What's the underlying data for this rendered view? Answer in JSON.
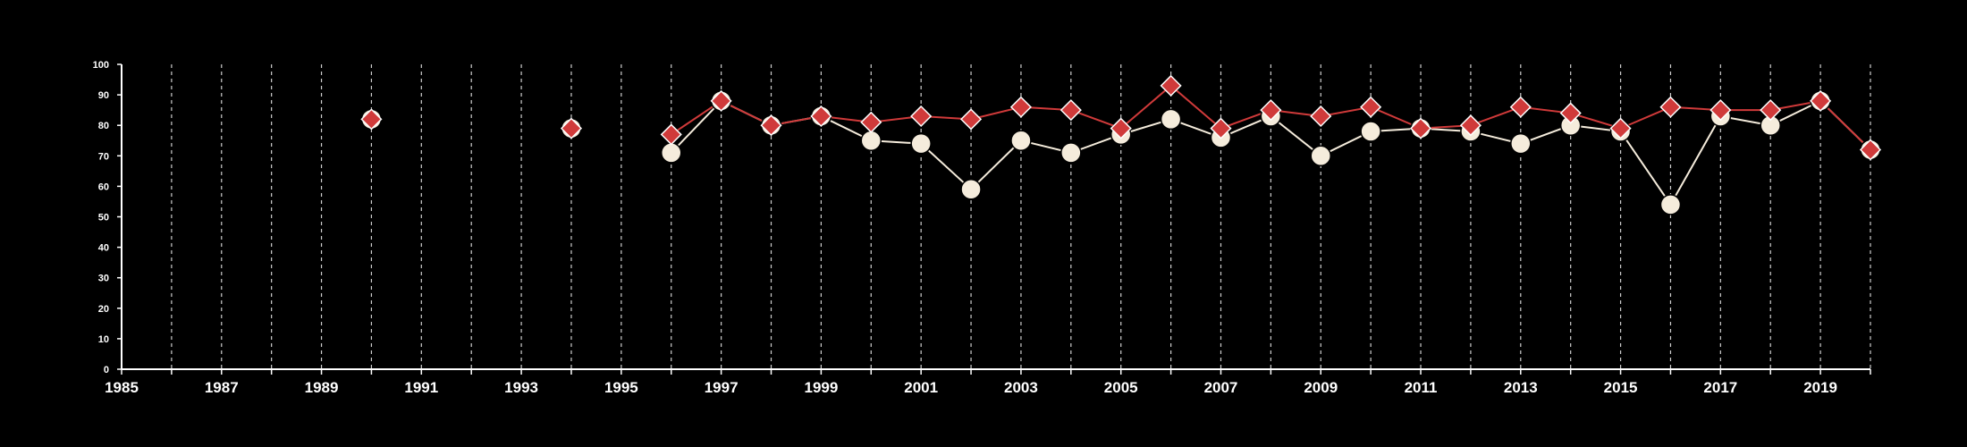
{
  "chart_data": {
    "type": "line",
    "title": "",
    "xlabel": "",
    "ylabel": "",
    "xlim": [
      1985,
      2020
    ],
    "ylim": [
      0,
      100
    ],
    "x_ticks": [
      1985,
      1987,
      1989,
      1991,
      1993,
      1995,
      1997,
      1999,
      2001,
      2003,
      2005,
      2007,
      2009,
      2011,
      2013,
      2015,
      2017,
      2019
    ],
    "y_ticks": [
      0,
      10,
      20,
      30,
      40,
      50,
      60,
      70,
      80,
      90,
      100
    ],
    "grid": "vertical dashed lines at each year",
    "background": "#000000",
    "series": [
      {
        "marker": "circle",
        "color": "#f5ecdc",
        "points": [
          [
            1996,
            71
          ],
          [
            1997,
            88
          ],
          [
            1998,
            80
          ],
          [
            1999,
            83
          ],
          [
            2000,
            75
          ],
          [
            2001,
            74
          ],
          [
            2002,
            59
          ],
          [
            2003,
            75
          ],
          [
            2004,
            71
          ],
          [
            2005,
            77
          ],
          [
            2006,
            82
          ],
          [
            2007,
            76
          ],
          [
            2008,
            83
          ],
          [
            2009,
            70
          ],
          [
            2010,
            78
          ],
          [
            2011,
            79
          ],
          [
            2012,
            78
          ],
          [
            2013,
            74
          ],
          [
            2014,
            80
          ],
          [
            2015,
            78
          ],
          [
            2016,
            54
          ],
          [
            2017,
            83
          ],
          [
            2018,
            80
          ],
          [
            2019,
            88
          ],
          [
            2020,
            72
          ]
        ]
      },
      {
        "marker": "diamond",
        "color": "#d03a3a",
        "isolated_points": [
          [
            1990,
            82
          ],
          [
            1994,
            79
          ]
        ],
        "points": [
          [
            1996,
            77
          ],
          [
            1997,
            88
          ],
          [
            1998,
            80
          ],
          [
            1999,
            83
          ],
          [
            2000,
            81
          ],
          [
            2001,
            83
          ],
          [
            2002,
            82
          ],
          [
            2003,
            86
          ],
          [
            2004,
            85
          ],
          [
            2005,
            79
          ],
          [
            2006,
            93
          ],
          [
            2007,
            79
          ],
          [
            2008,
            85
          ],
          [
            2009,
            83
          ],
          [
            2010,
            86
          ],
          [
            2011,
            79
          ],
          [
            2012,
            80
          ],
          [
            2013,
            86
          ],
          [
            2014,
            84
          ],
          [
            2015,
            79
          ],
          [
            2016,
            86
          ],
          [
            2017,
            85
          ],
          [
            2018,
            85
          ],
          [
            2019,
            88
          ],
          [
            2020,
            72
          ]
        ]
      }
    ]
  }
}
